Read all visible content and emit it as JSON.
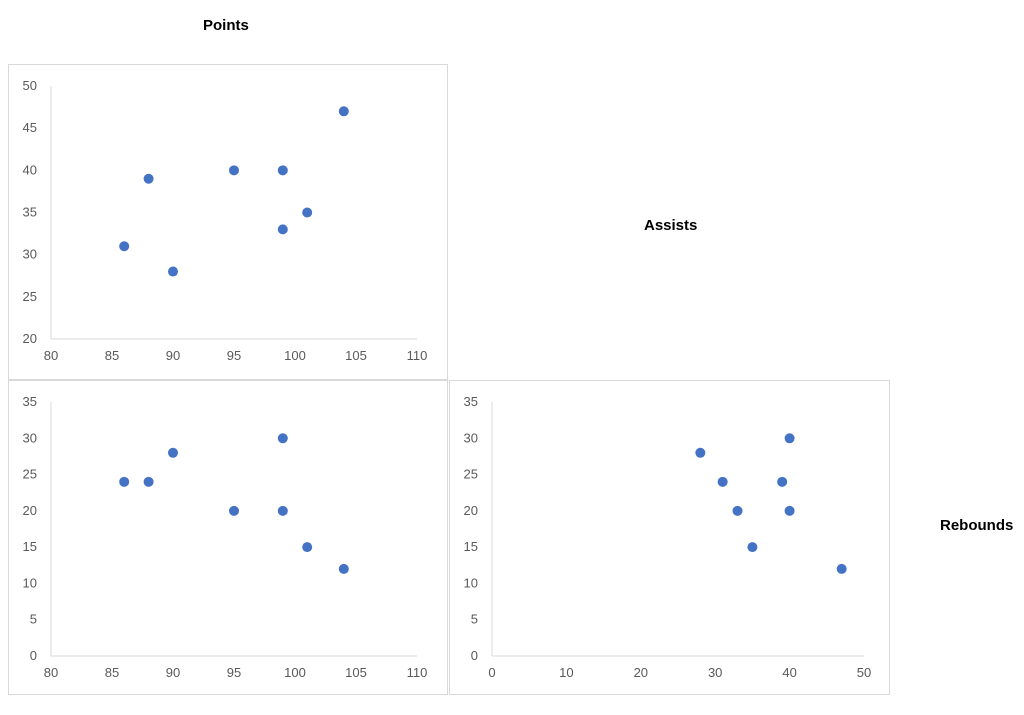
{
  "labels": {
    "points": "Points",
    "assists": "Assists",
    "rebounds": "Rebounds"
  },
  "colors": {
    "marker": "#4472C4",
    "axis": "#d9d9d9",
    "tick_text": "#595959",
    "border": "#d9d9d9"
  },
  "chart_data": [
    {
      "type": "scatter",
      "title": "",
      "position": "row 2, col 1 (top-left panel)",
      "xlabel": "Points",
      "ylabel": "Assists",
      "xlim": [
        80,
        110
      ],
      "ylim": [
        20,
        50
      ],
      "xticks": [
        80,
        85,
        90,
        95,
        100,
        105,
        110
      ],
      "yticks": [
        20,
        25,
        30,
        35,
        40,
        45,
        50
      ],
      "grid": false,
      "x": [
        86,
        88,
        90,
        95,
        99,
        99,
        101,
        104
      ],
      "y": [
        31,
        39,
        28,
        40,
        40,
        33,
        35,
        47
      ]
    },
    {
      "type": "scatter",
      "title": "",
      "position": "row 3, col 1 (bottom-left panel)",
      "xlabel": "Points",
      "ylabel": "Rebounds",
      "xlim": [
        80,
        110
      ],
      "ylim": [
        0,
        35
      ],
      "xticks": [
        80,
        85,
        90,
        95,
        100,
        105,
        110
      ],
      "yticks": [
        0,
        5,
        10,
        15,
        20,
        25,
        30,
        35
      ],
      "grid": false,
      "x": [
        86,
        88,
        90,
        95,
        99,
        99,
        101,
        104
      ],
      "y": [
        24,
        24,
        28,
        20,
        30,
        20,
        15,
        12
      ]
    },
    {
      "type": "scatter",
      "title": "",
      "position": "row 3, col 2 (bottom-right panel)",
      "xlabel": "Assists",
      "ylabel": "Rebounds",
      "xlim": [
        0,
        50
      ],
      "ylim": [
        0,
        35
      ],
      "xticks": [
        0,
        10,
        20,
        30,
        40,
        50
      ],
      "yticks": [
        0,
        5,
        10,
        15,
        20,
        25,
        30,
        35
      ],
      "grid": false,
      "x": [
        31,
        39,
        28,
        40,
        40,
        33,
        35,
        47
      ],
      "y": [
        24,
        24,
        28,
        20,
        30,
        20,
        15,
        12
      ]
    }
  ]
}
